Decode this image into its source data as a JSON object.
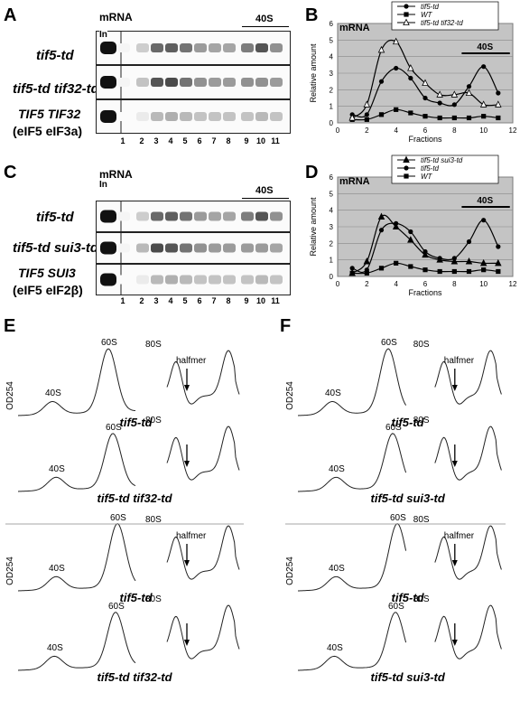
{
  "panels": {
    "A": {
      "letter": "A",
      "mrna": "mRNA",
      "in_label": "In",
      "bar_label": "40S",
      "rows": [
        {
          "label": "tif5-td"
        },
        {
          "label": "tif5-td tif32-td"
        },
        {
          "label": "TIF5 TIF32",
          "sublabel": "(eIF5 eIF3a)"
        }
      ],
      "lanes": [
        "1",
        "2",
        "3",
        "4",
        "5",
        "6",
        "7",
        "8",
        "9",
        "10",
        "11"
      ]
    },
    "C": {
      "letter": "C",
      "mrna": "mRNA",
      "in_label": "In",
      "bar_label": "40S",
      "rows": [
        {
          "label": "tif5-td"
        },
        {
          "label": "tif5-td sui3-td"
        },
        {
          "label": "TIF5 SUI3",
          "sublabel": "(eIF5 eIF2β)"
        }
      ],
      "lanes": [
        "1",
        "2",
        "3",
        "4",
        "5",
        "6",
        "7",
        "8",
        "9",
        "10",
        "11"
      ]
    },
    "B": {
      "letter": "B",
      "title": "mRNA",
      "bar_label": "40S"
    },
    "D": {
      "letter": "D",
      "title": "mRNA",
      "bar_label": "40S"
    },
    "E": {
      "letter": "E",
      "ylabel": "OD254",
      "traces": [
        {
          "peaks": [
            "40S",
            "60S",
            "80S"
          ],
          "halfmer": "halfmer",
          "label": "tif5-td"
        },
        {
          "peaks": [
            "40S",
            "60S",
            "80S"
          ],
          "halfmer": "",
          "label": "tif5-td tif32-td"
        },
        {
          "peaks": [
            "40S",
            "60S",
            "80S"
          ],
          "halfmer": "halfmer",
          "label": "tif5-td"
        },
        {
          "peaks": [
            "40S",
            "60S",
            "80S"
          ],
          "halfmer": "",
          "label": "tif5-td tif32-td"
        }
      ]
    },
    "F": {
      "letter": "F",
      "ylabel": "OD254",
      "traces": [
        {
          "peaks": [
            "40S",
            "60S",
            "80S"
          ],
          "halfmer": "halfmer",
          "label": "tif5-td"
        },
        {
          "peaks": [
            "40S",
            "60S",
            "80S"
          ],
          "halfmer": "",
          "label": "tif5-td sui3-td"
        },
        {
          "peaks": [
            "40S",
            "60S",
            "80S"
          ],
          "halfmer": "halfmer",
          "label": "tif5-td"
        },
        {
          "peaks": [
            "40S",
            "60S",
            "80S"
          ],
          "halfmer": "",
          "label": "tif5-td sui3-td"
        }
      ]
    }
  },
  "chart_data": [
    {
      "type": "line",
      "panel": "B",
      "title": "mRNA",
      "xlabel": "Fractions",
      "ylabel": "Relative amount",
      "xlim": [
        0,
        12
      ],
      "ylim": [
        0,
        6
      ],
      "xticks": [
        "0",
        "2",
        "4",
        "6",
        "8",
        "10",
        "12"
      ],
      "yticks": [
        "0",
        "1",
        "2",
        "3",
        "4",
        "5",
        "6"
      ],
      "grid": true,
      "legend": "top",
      "annotation": "40S",
      "series": [
        {
          "name": "tif5-td",
          "marker": "circle",
          "x": [
            1,
            2,
            3,
            4,
            5,
            6,
            7,
            8,
            9,
            10,
            11
          ],
          "y": [
            0.5,
            0.5,
            2.5,
            3.3,
            2.7,
            1.5,
            1.2,
            1.1,
            2.2,
            3.4,
            1.8
          ]
        },
        {
          "name": "WT",
          "marker": "square",
          "x": [
            1,
            2,
            3,
            4,
            5,
            6,
            7,
            8,
            9,
            10,
            11
          ],
          "y": [
            0.2,
            0.2,
            0.5,
            0.8,
            0.6,
            0.4,
            0.3,
            0.3,
            0.3,
            0.4,
            0.3
          ]
        },
        {
          "name": "tif5-td tif32-td",
          "marker": "triangle-open",
          "x": [
            1,
            2,
            3,
            4,
            5,
            6,
            7,
            8,
            9,
            10,
            11
          ],
          "y": [
            0.3,
            1.1,
            4.4,
            4.9,
            3.3,
            2.4,
            1.7,
            1.7,
            1.8,
            1.1,
            1.1
          ]
        }
      ]
    },
    {
      "type": "line",
      "panel": "D",
      "title": "mRNA",
      "xlabel": "Fractions",
      "ylabel": "Relative amount",
      "xlim": [
        0,
        12
      ],
      "ylim": [
        0,
        6
      ],
      "xticks": [
        "0",
        "2",
        "4",
        "6",
        "8",
        "10",
        "12"
      ],
      "yticks": [
        "0",
        "1",
        "2",
        "3",
        "4",
        "5",
        "6"
      ],
      "grid": true,
      "legend": "top",
      "annotation": "40S",
      "series": [
        {
          "name": "tif5-td sui3-td",
          "marker": "triangle",
          "x": [
            1,
            2,
            3,
            4,
            5,
            6,
            7,
            8,
            9,
            10,
            11
          ],
          "y": [
            0.2,
            0.9,
            3.6,
            3.0,
            2.2,
            1.3,
            1.0,
            0.9,
            0.9,
            0.8,
            0.8
          ]
        },
        {
          "name": "tif5-td",
          "marker": "circle",
          "x": [
            1,
            2,
            3,
            4,
            5,
            6,
            7,
            8,
            9,
            10,
            11
          ],
          "y": [
            0.5,
            0.4,
            2.8,
            3.2,
            2.7,
            1.5,
            1.1,
            1.1,
            2.1,
            3.4,
            1.8
          ]
        },
        {
          "name": "WT",
          "marker": "square",
          "x": [
            1,
            2,
            3,
            4,
            5,
            6,
            7,
            8,
            9,
            10,
            11
          ],
          "y": [
            0.2,
            0.2,
            0.5,
            0.8,
            0.6,
            0.4,
            0.3,
            0.3,
            0.3,
            0.4,
            0.3
          ]
        }
      ]
    }
  ]
}
